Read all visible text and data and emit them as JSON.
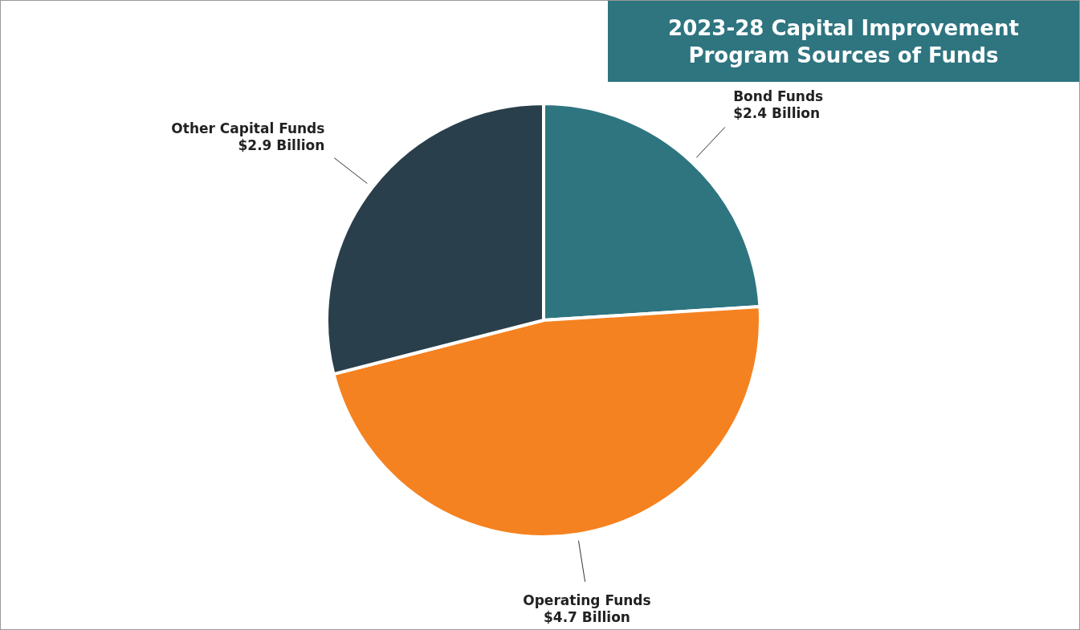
{
  "chart_data": {
    "type": "pie",
    "title": "2023-28 Capital Improvement Program Sources of Funds",
    "categories": [
      "Bond Funds",
      "Operating Funds",
      "Other Capital Funds"
    ],
    "values": [
      2.4,
      4.7,
      2.9
    ],
    "value_labels": [
      "$2.4 Billion",
      "$4.7 Billion",
      "$2.9 Billion"
    ],
    "colors": [
      "#2e7580",
      "#f58220",
      "#293f4c"
    ]
  }
}
